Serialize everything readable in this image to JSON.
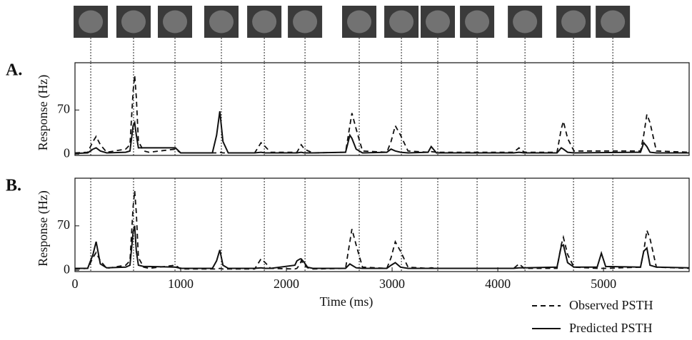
{
  "chart_data": [
    {
      "type": "line",
      "panel_label": "A.",
      "ylabel": "Response (Hz)",
      "xlim": [
        0,
        5810
      ],
      "ylim": [
        -2,
        145
      ],
      "yticks": [
        0,
        70
      ],
      "stimulus_onsets": [
        149,
        554,
        946,
        1385,
        1791,
        2176,
        2689,
        3088,
        3432,
        3804,
        4257,
        4716,
        5088
      ],
      "x": [
        0,
        120,
        170,
        200,
        240,
        300,
        480,
        520,
        550,
        565,
        580,
        600,
        650,
        700,
        950,
        1000,
        1300,
        1340,
        1370,
        1400,
        1450,
        1700,
        1760,
        1800,
        1850,
        2100,
        2140,
        2170,
        2250,
        2560,
        2600,
        2620,
        2660,
        2720,
        2950,
        2990,
        3030,
        3080,
        3150,
        3340,
        3370,
        3420,
        4150,
        4200,
        4250,
        4560,
        4600,
        4620,
        4660,
        4720,
        5350,
        5380,
        5410,
        5440,
        5500,
        5810
      ],
      "series": [
        {
          "style": "dashed",
          "color": "#111111",
          "values": [
            2,
            3,
            20,
            28,
            15,
            3,
            8,
            15,
            100,
            125,
            90,
            20,
            5,
            3,
            8,
            2,
            2,
            2,
            3,
            2,
            2,
            2,
            18,
            12,
            3,
            3,
            15,
            8,
            2,
            3,
            45,
            65,
            40,
            5,
            3,
            20,
            45,
            30,
            5,
            3,
            4,
            3,
            3,
            10,
            3,
            3,
            40,
            52,
            25,
            5,
            5,
            30,
            63,
            50,
            5,
            3
          ]
        },
        {
          "style": "solid",
          "color": "#111111",
          "values": [
            1,
            2,
            8,
            10,
            5,
            2,
            3,
            5,
            45,
            50,
            30,
            10,
            10,
            10,
            10,
            2,
            2,
            30,
            68,
            20,
            2,
            2,
            3,
            2,
            2,
            2,
            3,
            2,
            2,
            3,
            30,
            25,
            8,
            2,
            3,
            8,
            5,
            3,
            2,
            3,
            12,
            2,
            2,
            3,
            2,
            2,
            10,
            8,
            3,
            2,
            3,
            18,
            12,
            3,
            2,
            2
          ]
        }
      ]
    },
    {
      "type": "line",
      "panel_label": "B.",
      "ylabel": "Response (Hz)",
      "xlabel": "Time (ms)",
      "xlim": [
        0,
        5810
      ],
      "ylim": [
        -2,
        145
      ],
      "yticks": [
        0,
        70
      ],
      "xticks": [
        0,
        1000,
        2000,
        3000,
        4000,
        5000
      ],
      "stimulus_onsets": [
        149,
        554,
        946,
        1385,
        1791,
        2176,
        2689,
        3088,
        3432,
        3804,
        4257,
        4716,
        5088
      ],
      "legend": "bottom-right",
      "x": [
        0,
        120,
        170,
        200,
        240,
        300,
        480,
        520,
        550,
        565,
        580,
        600,
        650,
        700,
        950,
        1000,
        1300,
        1340,
        1370,
        1400,
        1450,
        1700,
        1760,
        1800,
        1850,
        2080,
        2100,
        2130,
        2140,
        2170,
        2200,
        2250,
        2560,
        2600,
        2620,
        2660,
        2720,
        2950,
        2990,
        3030,
        3080,
        3150,
        3340,
        3370,
        3420,
        4150,
        4200,
        4250,
        4560,
        4600,
        4620,
        4660,
        4720,
        4940,
        4980,
        5020,
        5350,
        5380,
        5410,
        5440,
        5500,
        5810
      ],
      "series": [
        {
          "name": "Observed PSTH",
          "style": "dashed",
          "color": "#111111",
          "values": [
            2,
            3,
            20,
            28,
            15,
            3,
            8,
            15,
            100,
            125,
            90,
            20,
            5,
            3,
            8,
            2,
            2,
            2,
            3,
            2,
            2,
            2,
            18,
            12,
            3,
            2,
            3,
            10,
            15,
            8,
            4,
            2,
            3,
            45,
            65,
            40,
            5,
            3,
            20,
            45,
            30,
            5,
            3,
            4,
            3,
            3,
            10,
            3,
            3,
            40,
            52,
            25,
            5,
            3,
            3,
            3,
            5,
            30,
            63,
            50,
            5,
            3
          ]
        },
        {
          "name": "Predicted PSTH",
          "style": "solid",
          "color": "#111111",
          "values": [
            3,
            3,
            25,
            45,
            10,
            4,
            5,
            8,
            60,
            70,
            30,
            8,
            6,
            6,
            5,
            3,
            3,
            15,
            32,
            8,
            3,
            3,
            4,
            3,
            3,
            8,
            15,
            18,
            18,
            12,
            5,
            3,
            3,
            10,
            8,
            4,
            3,
            3,
            8,
            12,
            5,
            3,
            3,
            3,
            3,
            3,
            4,
            4,
            5,
            38,
            40,
            12,
            5,
            5,
            27,
            6,
            5,
            30,
            35,
            8,
            5,
            4
          ]
        }
      ]
    }
  ]
}
